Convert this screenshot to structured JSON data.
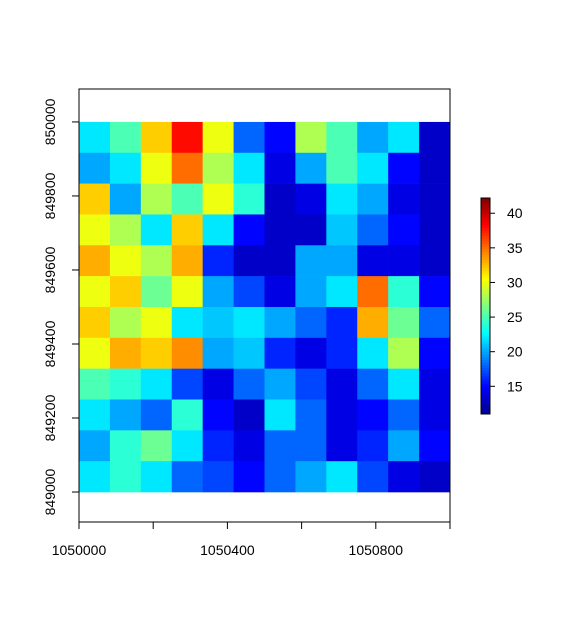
{
  "chart_data": {
    "type": "raster",
    "x_extent": [
      1050000,
      1051000
    ],
    "y_extent": [
      849000,
      850000
    ],
    "xlim": [
      1050000,
      1051000
    ],
    "ylim": [
      848919,
      850089
    ],
    "xticks": [
      1050000,
      {
        "value": 1050200,
        "label": null
      },
      1050400,
      {
        "value": 1050600,
        "label": null
      },
      1050800,
      {
        "value": 1051000,
        "label": null
      }
    ],
    "yticks": [
      849000,
      849200,
      849400,
      849600,
      849800,
      850000
    ],
    "zlim": [
      11,
      42.2
    ],
    "zticks": [
      15,
      20,
      25,
      30,
      35,
      40
    ],
    "colormap": [
      "#00008f",
      "#0000ff",
      "#0080ff",
      "#00ffff",
      "#80ff80",
      "#ffff00",
      "#ff8000",
      "#ff0000",
      "#800000"
    ],
    "z": [
      [
        22,
        25,
        32,
        38,
        30,
        18,
        15,
        28,
        25,
        20,
        22,
        13
      ],
      [
        20,
        22,
        30,
        35,
        28,
        22,
        14,
        20,
        25,
        22,
        15,
        13
      ],
      [
        32,
        20,
        28,
        25,
        30,
        24,
        13,
        14,
        22,
        20,
        14,
        13
      ],
      [
        30,
        28,
        22,
        32,
        22,
        15,
        13,
        13,
        21,
        18,
        15,
        13
      ],
      [
        33,
        30,
        28,
        33,
        16,
        13,
        13,
        20,
        20,
        14,
        14,
        13
      ],
      [
        30,
        32,
        26,
        30,
        20,
        17,
        14,
        20,
        22,
        35,
        24,
        15
      ],
      [
        32,
        28,
        30,
        22,
        21,
        22,
        20,
        18,
        16,
        33,
        26,
        18
      ],
      [
        30,
        33,
        32,
        34,
        20,
        21,
        16,
        14,
        16,
        22,
        28,
        15
      ],
      [
        25,
        24,
        22,
        17,
        14,
        18,
        20,
        17,
        14,
        18,
        22,
        14
      ],
      [
        22,
        20,
        18,
        24,
        15,
        13,
        22,
        18,
        14,
        15,
        18,
        14
      ],
      [
        20,
        24,
        26,
        22,
        16,
        14,
        18,
        18,
        14,
        16,
        20,
        15
      ],
      [
        22,
        24,
        22,
        18,
        17,
        15,
        18,
        20,
        22,
        17,
        14,
        13
      ]
    ]
  }
}
